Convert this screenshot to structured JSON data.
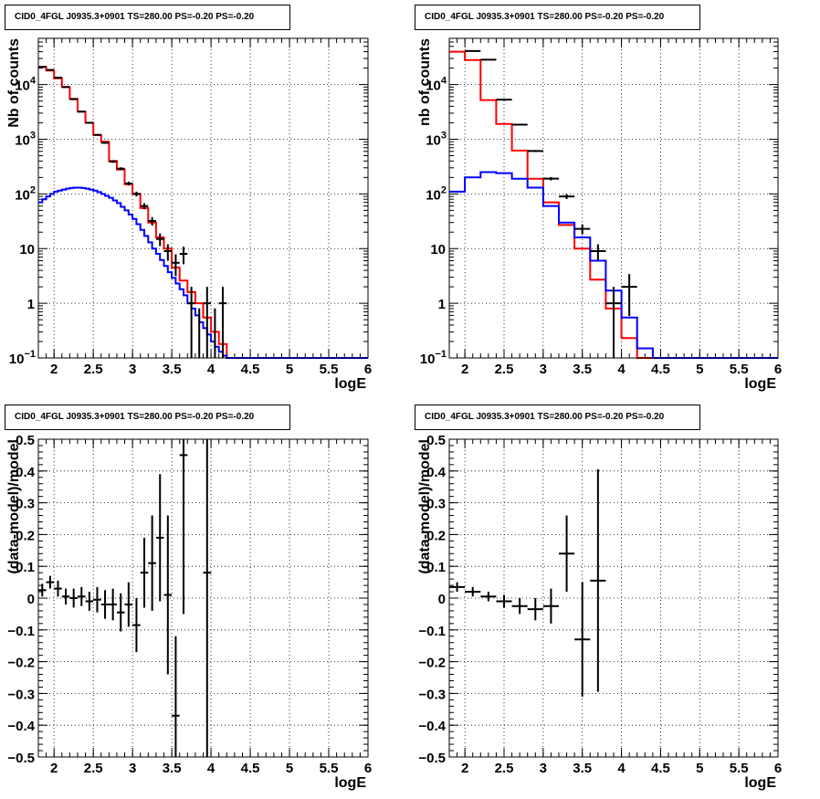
{
  "chart_data": [
    {
      "type": "step-histogram",
      "title": "CID0_4FGL J0935.3+0901 TS=280.00 PS=-0.20 PS=-0.20",
      "xlabel": "logE",
      "ylabel": "Nb of counts",
      "xlim": [
        1.8,
        6.0
      ],
      "ylim": [
        0.1,
        70000
      ],
      "yscale": "log",
      "xticks": [
        "2",
        "2.5",
        "3",
        "3.5",
        "4",
        "4.5",
        "5",
        "5.5",
        "6"
      ],
      "yticks": [
        "10^-1",
        "1",
        "10",
        "10^2",
        "10^3",
        "10^4"
      ],
      "grid": true,
      "series": [
        {
          "color": "#ff0000",
          "bin_edges": [
            1.8,
            1.9,
            2.0,
            2.1,
            2.2,
            2.3,
            2.4,
            2.5,
            2.6,
            2.7,
            2.8,
            2.9,
            3.0,
            3.1,
            3.2,
            3.3,
            3.4,
            3.5,
            3.6,
            3.7,
            3.8,
            3.9,
            4.0,
            4.1,
            4.2,
            4.3,
            6.0
          ],
          "values": [
            21000,
            18000,
            13000,
            9000,
            5500,
            3200,
            2000,
            1200,
            900,
            400,
            280,
            150,
            100,
            55,
            30,
            16,
            10,
            4.5,
            2.6,
            1.6,
            1.0,
            0.55,
            0.3,
            0.18,
            0.1,
            0.1
          ]
        },
        {
          "color": "#0000ff",
          "bin_edges": [
            1.8,
            1.85,
            1.9,
            1.95,
            2.0,
            2.05,
            2.1,
            2.15,
            2.2,
            2.25,
            2.3,
            2.35,
            2.4,
            2.45,
            2.5,
            2.55,
            2.6,
            2.65,
            2.7,
            2.75,
            2.8,
            2.85,
            2.9,
            2.95,
            3.0,
            3.05,
            3.1,
            3.15,
            3.2,
            3.25,
            3.3,
            3.35,
            3.4,
            3.45,
            3.5,
            3.55,
            3.6,
            3.65,
            3.7,
            3.75,
            3.8,
            3.85,
            3.9,
            3.95,
            4.0,
            4.05,
            4.1,
            4.15,
            4.2,
            6.0
          ],
          "values": [
            70,
            80,
            90,
            100,
            110,
            115,
            120,
            125,
            128,
            130,
            130,
            128,
            125,
            120,
            115,
            108,
            100,
            92,
            85,
            76,
            68,
            58,
            50,
            42,
            35,
            28,
            22,
            17,
            13,
            10,
            8,
            6.2,
            4.8,
            3.7,
            2.9,
            2.3,
            1.8,
            1.4,
            1.0,
            0.8,
            0.6,
            0.45,
            0.35,
            0.27,
            0.2,
            0.16,
            0.13,
            0.11,
            0.1
          ]
        }
      ],
      "data_points": {
        "color": "#000000",
        "x": [
          1.85,
          1.95,
          2.05,
          2.15,
          2.25,
          2.35,
          2.45,
          2.55,
          2.65,
          2.75,
          2.85,
          2.95,
          3.05,
          3.15,
          3.25,
          3.35,
          3.45,
          3.55,
          3.65,
          3.75,
          3.85,
          3.95,
          4.05,
          4.15
        ],
        "y": [
          21000,
          18500,
          13400,
          9000,
          5400,
          3200,
          2000,
          1200,
          860,
          390,
          290,
          155,
          100,
          60,
          32,
          15,
          9,
          5.5,
          8,
          1,
          0.1,
          1,
          0.1,
          1
        ],
        "xerr": 0.05
      }
    },
    {
      "type": "step-histogram",
      "title": "CID0_4FGL J0935.3+0901 TS=280.00 PS=-0.20 PS=-0.20",
      "xlabel": "logE",
      "ylabel": "nb of counts",
      "xlim": [
        1.8,
        6.0
      ],
      "ylim": [
        0.1,
        70000
      ],
      "yscale": "log",
      "xticks": [
        "2",
        "2.5",
        "3",
        "3.5",
        "4",
        "4.5",
        "5",
        "5.5",
        "6"
      ],
      "yticks": [
        "10^-1",
        "1",
        "10",
        "10^2",
        "10^3",
        "10^4"
      ],
      "grid": true,
      "series": [
        {
          "color": "#ff0000",
          "bin_edges": [
            1.8,
            2.0,
            2.2,
            2.4,
            2.6,
            2.8,
            3.0,
            3.2,
            3.4,
            3.6,
            3.8,
            4.0,
            4.2,
            4.4,
            6.0
          ],
          "values": [
            40000,
            28000,
            5200,
            1900,
            620,
            190,
            70,
            27,
            10,
            2.7,
            0.8,
            0.23,
            0.1,
            0.1
          ]
        },
        {
          "color": "#0000ff",
          "bin_edges": [
            1.8,
            2.0,
            2.2,
            2.4,
            2.6,
            2.8,
            3.0,
            3.2,
            3.4,
            3.6,
            3.8,
            4.0,
            4.2,
            4.4,
            6.0
          ],
          "values": [
            110,
            200,
            250,
            240,
            190,
            130,
            60,
            30,
            16,
            6,
            1.7,
            0.55,
            0.15,
            0.1
          ]
        }
      ],
      "data_points": {
        "color": "#000000",
        "x": [
          2.1,
          2.3,
          2.5,
          2.7,
          2.9,
          3.1,
          3.3,
          3.5,
          3.7,
          3.9,
          4.1
        ],
        "y": [
          41000,
          28500,
          5300,
          1850,
          610,
          190,
          90,
          23,
          9,
          1,
          2
        ],
        "xerr": 0.1
      }
    },
    {
      "type": "scatter-errorbars",
      "title": "CID0_4FGL J0935.3+0901 TS=280.00 PS=-0.20 PS=-0.20",
      "xlabel": "logE",
      "ylabel": "(data-model)/model",
      "xlim": [
        1.8,
        6.0
      ],
      "ylim": [
        -0.5,
        0.5
      ],
      "xticks": [
        "2",
        "2.5",
        "3",
        "3.5",
        "4",
        "4.5",
        "5",
        "5.5",
        "6"
      ],
      "yticks": [
        "−0.5",
        "−0.4",
        "−0.3",
        "−0.2",
        "−0.1",
        "0",
        "0.1",
        "0.2",
        "0.3",
        "0.4",
        "0.5"
      ],
      "grid": true,
      "points": {
        "color": "#000000",
        "x": [
          1.85,
          1.95,
          2.05,
          2.15,
          2.25,
          2.35,
          2.45,
          2.55,
          2.65,
          2.75,
          2.85,
          2.95,
          3.05,
          3.15,
          3.25,
          3.35,
          3.45,
          3.55,
          3.65,
          3.95
        ],
        "y": [
          0.025,
          0.05,
          0.03,
          0.005,
          0.0,
          0.005,
          -0.01,
          -0.005,
          -0.02,
          -0.02,
          -0.045,
          -0.02,
          -0.085,
          0.08,
          0.11,
          0.19,
          0.01,
          -0.37,
          0.45,
          0.08
        ],
        "yerr": [
          0.02,
          0.02,
          0.025,
          0.025,
          0.03,
          0.03,
          0.03,
          0.04,
          0.045,
          0.05,
          0.06,
          0.07,
          0.085,
          0.11,
          0.15,
          0.2,
          0.25,
          0.25,
          0.5,
          1.0
        ],
        "xerr": 0.05
      }
    },
    {
      "type": "scatter-errorbars",
      "title": "CID0_4FGL J0935.3+0901 TS=280.00 PS=-0.20 PS=-0.20",
      "xlabel": "logE",
      "ylabel": "(data-model)/model",
      "xlim": [
        1.8,
        6.0
      ],
      "ylim": [
        -0.5,
        0.5
      ],
      "xticks": [
        "2",
        "2.5",
        "3",
        "3.5",
        "4",
        "4.5",
        "5",
        "5.5",
        "6"
      ],
      "yticks": [
        "−0.5",
        "−0.4",
        "−0.3",
        "−0.2",
        "−0.1",
        "0",
        "0.1",
        "0.2",
        "0.3",
        "0.4",
        "0.5"
      ],
      "grid": true,
      "points": {
        "color": "#000000",
        "x": [
          1.9,
          2.1,
          2.3,
          2.5,
          2.7,
          2.9,
          3.1,
          3.3,
          3.5,
          3.7
        ],
        "y": [
          0.035,
          0.02,
          0.005,
          -0.01,
          -0.025,
          -0.035,
          -0.025,
          0.14,
          -0.13,
          0.055
        ],
        "yerr": [
          0.015,
          0.015,
          0.015,
          0.02,
          0.025,
          0.035,
          0.055,
          0.12,
          0.18,
          0.35
        ],
        "xerr": 0.1
      }
    }
  ]
}
